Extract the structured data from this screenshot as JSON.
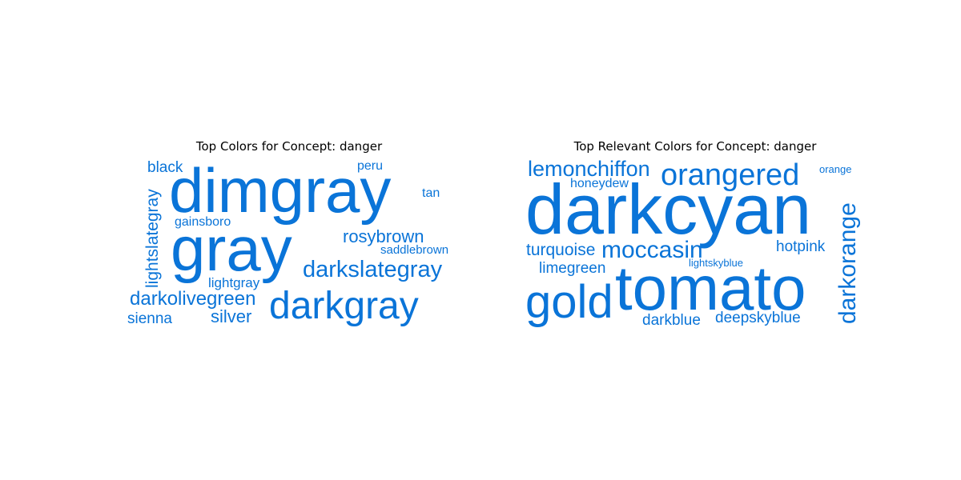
{
  "chart_data": [
    {
      "type": "wordcloud",
      "title": "Top Colors for Concept: danger",
      "color": "#0a74d8",
      "words": [
        {
          "text": "dimgray",
          "weight": 1.0
        },
        {
          "text": "gray",
          "weight": 0.92
        },
        {
          "text": "darkgray",
          "weight": 0.6
        },
        {
          "text": "darkslategray",
          "weight": 0.36
        },
        {
          "text": "darkolivegreen",
          "weight": 0.3
        },
        {
          "text": "rosybrown",
          "weight": 0.28
        },
        {
          "text": "lightslategray",
          "weight": 0.26
        },
        {
          "text": "silver",
          "weight": 0.27
        },
        {
          "text": "black",
          "weight": 0.24
        },
        {
          "text": "sienna",
          "weight": 0.23
        },
        {
          "text": "lightgray",
          "weight": 0.22
        },
        {
          "text": "tan",
          "weight": 0.2
        },
        {
          "text": "gainsboro",
          "weight": 0.19
        },
        {
          "text": "peru",
          "weight": 0.19
        },
        {
          "text": "saddlebrown",
          "weight": 0.18
        }
      ]
    },
    {
      "type": "wordcloud",
      "title": "Top Relevant Colors for Concept: danger",
      "color": "#0a74d8",
      "words": [
        {
          "text": "darkcyan",
          "weight": 1.0
        },
        {
          "text": "tomato",
          "weight": 0.95
        },
        {
          "text": "gold",
          "weight": 0.7
        },
        {
          "text": "orangered",
          "weight": 0.5
        },
        {
          "text": "darkorange",
          "weight": 0.4
        },
        {
          "text": "lemonchiffon",
          "weight": 0.38
        },
        {
          "text": "moccasin",
          "weight": 0.4
        },
        {
          "text": "turquoise",
          "weight": 0.27
        },
        {
          "text": "hotpink",
          "weight": 0.25
        },
        {
          "text": "limegreen",
          "weight": 0.25
        },
        {
          "text": "darkblue",
          "weight": 0.24
        },
        {
          "text": "deepskyblue",
          "weight": 0.24
        },
        {
          "text": "honeydew",
          "weight": 0.21
        },
        {
          "text": "lightskyblue",
          "weight": 0.17
        },
        {
          "text": "orange",
          "weight": 0.17
        }
      ]
    }
  ]
}
